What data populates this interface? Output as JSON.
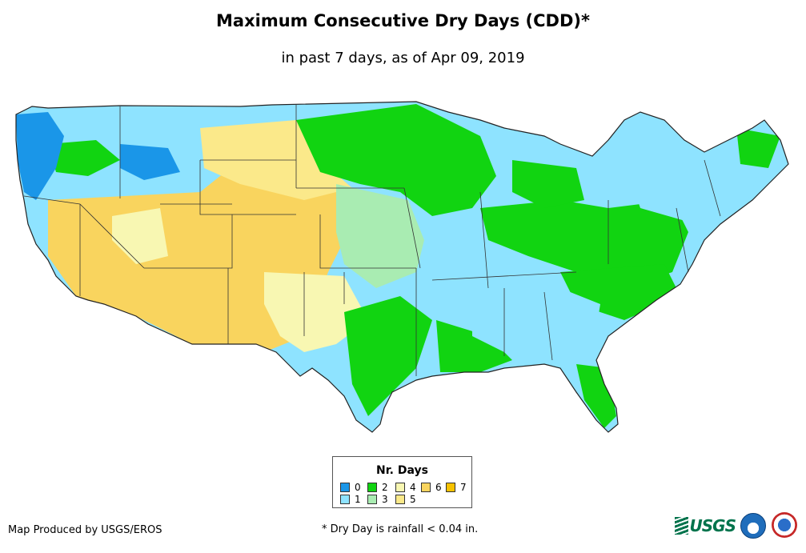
{
  "title": "Maximum Consecutive Dry Days (CDD)*",
  "subtitle": "in past 7 days, as of Apr 09, 2019",
  "legend": {
    "title": "Nr. Days",
    "items": [
      {
        "label": "0",
        "color": "#1a96e8"
      },
      {
        "label": "1",
        "color": "#8ee3ff"
      },
      {
        "label": "2",
        "color": "#11d411"
      },
      {
        "label": "3",
        "color": "#a9ecb2"
      },
      {
        "label": "4",
        "color": "#f8f7b2"
      },
      {
        "label": "5",
        "color": "#fbe98a"
      },
      {
        "label": "6",
        "color": "#f9d45e"
      },
      {
        "label": "7",
        "color": "#f7c200"
      }
    ]
  },
  "credit": "Map Produced by USGS/EROS",
  "footnote": "* Dry Day is rainfall < 0.04 in.",
  "logos": {
    "usgs": "USGS",
    "noaa": "noaa",
    "nws": "NWS"
  }
}
